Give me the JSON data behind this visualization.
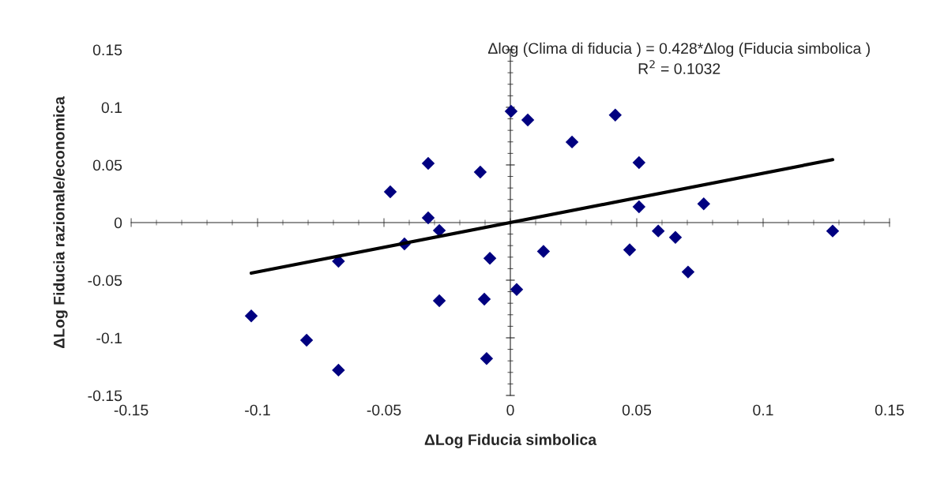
{
  "chart_data": {
    "type": "scatter",
    "xlabel": "ΔLog Fiducia simbolica",
    "ylabel": "ΔLog Fiducia razionale/economica",
    "annotations": [
      "Δlog (Clima di fiducia ) = 0.428*Δlog (Fiducia simbolica )",
      "R$^{2}$ = 0.1032"
    ],
    "xlim": [
      -0.15,
      0.15
    ],
    "ylim": [
      -0.15,
      0.15
    ],
    "xticks": [
      -0.15,
      -0.1,
      -0.05,
      0,
      0.05,
      0.1,
      0.15
    ],
    "yticks": [
      -0.15,
      -0.1,
      -0.05,
      0,
      0.05,
      0.1,
      0.15
    ],
    "legend": false,
    "marker": "diamond",
    "series": [
      {
        "color": "#000080",
        "x": [
          -0.1025,
          -0.0806,
          -0.068,
          -0.068,
          -0.0475,
          -0.0419,
          -0.0325,
          -0.0325,
          -0.0281,
          -0.0281,
          -0.0119,
          -0.0103,
          -0.0094,
          -0.0081,
          0.0003,
          0.0025,
          0.0069,
          0.0131,
          0.0244,
          0.0415,
          0.0472,
          0.0509,
          0.0509,
          0.0585,
          0.0653,
          0.0703,
          0.0765,
          0.1275
        ],
        "values": [
          -0.081,
          -0.102,
          -0.128,
          -0.0336,
          0.0267,
          -0.0185,
          0.0514,
          0.0041,
          -0.0068,
          -0.0678,
          0.0438,
          -0.0664,
          -0.118,
          -0.031,
          0.0966,
          -0.058,
          0.089,
          -0.025,
          0.0699,
          0.0933,
          -0.0237,
          0.052,
          0.0137,
          -0.0073,
          -0.0128,
          -0.0429,
          0.0162,
          -0.0073
        ]
      },
      {
        "type": "line",
        "color": "#000000",
        "marker": "none",
        "line_style": "solid",
        "x": [
          -0.1025,
          0.1275
        ],
        "values": [
          -0.0439,
          0.0546
        ]
      }
    ]
  }
}
